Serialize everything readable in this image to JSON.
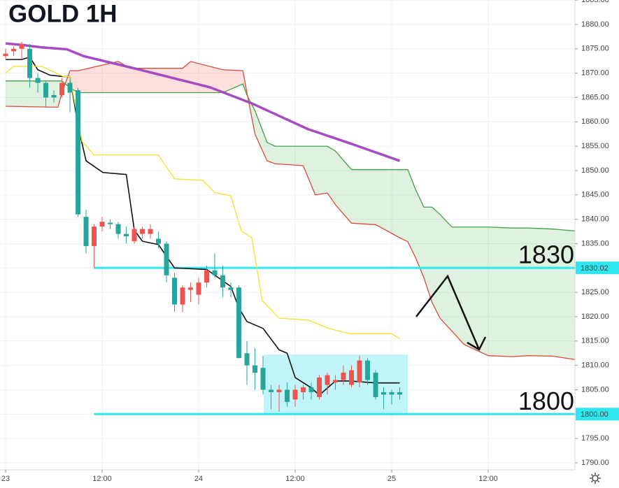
{
  "chart_data": {
    "type": "candlestick",
    "title": "GOLD 1H",
    "xlim": [
      -0.7,
      70.78
    ],
    "ylim": [
      1788.56,
      1885.02
    ],
    "grid": true,
    "xticks": [
      {
        "value": 0,
        "label": "23"
      },
      {
        "value": 12,
        "label": "12:00"
      },
      {
        "value": 24,
        "label": "24"
      },
      {
        "value": 36,
        "label": "12:00"
      },
      {
        "value": 48,
        "label": "25"
      },
      {
        "value": 60,
        "label": "12:00"
      }
    ],
    "yticks": [
      {
        "value": 1790,
        "label": "1790.00"
      },
      {
        "value": 1795,
        "label": "1795.00"
      },
      {
        "value": 1800,
        "label": "1800.00"
      },
      {
        "value": 1805,
        "label": "1805.00"
      },
      {
        "value": 1810,
        "label": "1810.00"
      },
      {
        "value": 1815,
        "label": "1815.00"
      },
      {
        "value": 1820,
        "label": "1820.00"
      },
      {
        "value": 1825,
        "label": "1825.00"
      },
      {
        "value": 1830,
        "label": "1830.00"
      },
      {
        "value": 1835,
        "label": "1835.00"
      },
      {
        "value": 1840,
        "label": "1840.00"
      },
      {
        "value": 1845,
        "label": "1845.00"
      },
      {
        "value": 1850,
        "label": "1850.00"
      },
      {
        "value": 1855,
        "label": "1855.00"
      },
      {
        "value": 1860,
        "label": "1860.00"
      },
      {
        "value": 1865,
        "label": "1865.00"
      },
      {
        "value": 1870,
        "label": "1870.00"
      },
      {
        "value": 1875,
        "label": "1875.00"
      },
      {
        "value": 1880,
        "label": "1880.00"
      },
      {
        "value": 1885,
        "label": "1885.00"
      }
    ],
    "candles": {
      "up_color": "#ef5350",
      "down_color": "#26a69a",
      "x": [
        0,
        1,
        2,
        3,
        4,
        5,
        6,
        7,
        8,
        9,
        10,
        11,
        12,
        13,
        14,
        15,
        16,
        17,
        18,
        19,
        20,
        21,
        22,
        23,
        24,
        25,
        26,
        27,
        28,
        29,
        30,
        31,
        32,
        33,
        34,
        35,
        36,
        37,
        38,
        39,
        40,
        41,
        42,
        43,
        44,
        45,
        46,
        47,
        48,
        49
      ],
      "open": [
        1873.5,
        1874.5,
        1875,
        1875,
        1869,
        1868,
        1865.5,
        1865.5,
        1868,
        1866.5,
        1840.5,
        1834.5,
        1838.5,
        1839.3,
        1839,
        1837,
        1835.5,
        1837,
        1837,
        1836,
        1835,
        1828,
        1822.5,
        1825.5,
        1824.5,
        1827,
        1829.5,
        1828.5,
        1826,
        1826,
        1812.5,
        1810,
        1809.5,
        1805,
        1804.5,
        1805,
        1803,
        1804.5,
        1805.5,
        1803.5,
        1806,
        1806.5,
        1807,
        1806,
        1806.5,
        1811,
        1808.5,
        1804.5,
        1804.5,
        1804.5
      ],
      "high": [
        1875,
        1875.5,
        1876.5,
        1876,
        1870,
        1868.5,
        1866.5,
        1869,
        1869,
        1867,
        1842,
        1839,
        1840.5,
        1840,
        1839.5,
        1838.5,
        1838.5,
        1838.5,
        1839,
        1837.5,
        1835.5,
        1829,
        1826.5,
        1827,
        1828,
        1830.5,
        1833,
        1830.5,
        1827,
        1826.5,
        1815,
        1813.5,
        1812,
        1806,
        1806,
        1806.5,
        1806,
        1806,
        1806.5,
        1808,
        1808.5,
        1808,
        1810,
        1810,
        1812,
        1811.5,
        1809,
        1805.5,
        1805,
        1805.5
      ],
      "low": [
        1873,
        1873.5,
        1873,
        1867,
        1866,
        1863,
        1864,
        1865,
        1862,
        1840.5,
        1833,
        1830,
        1837.5,
        1838,
        1836,
        1835,
        1835,
        1836,
        1836,
        1834,
        1827,
        1821,
        1821,
        1823,
        1822.5,
        1826,
        1828,
        1824,
        1824,
        1811.5,
        1806,
        1805,
        1804,
        1801,
        1800.5,
        1801.5,
        1801.5,
        1803,
        1803,
        1803,
        1804,
        1805,
        1806,
        1805.5,
        1805.5,
        1806,
        1803,
        1801,
        1802,
        1803
      ],
      "close": [
        1874,
        1875,
        1876,
        1869,
        1868,
        1865,
        1865,
        1868,
        1866,
        1841,
        1834.5,
        1838.5,
        1839.5,
        1839,
        1837,
        1836.5,
        1838,
        1838,
        1838,
        1835,
        1828.5,
        1822.5,
        1826,
        1826,
        1827,
        1829.5,
        1828.5,
        1826,
        1825.5,
        1811.5,
        1810,
        1808.5,
        1805,
        1804.5,
        1805,
        1802.5,
        1805,
        1805.5,
        1804.5,
        1807.5,
        1808,
        1807,
        1808.5,
        1809,
        1811,
        1807,
        1803.5,
        1804,
        1804,
        1804
      ]
    },
    "cloud": {
      "span_a_color": "#43a047",
      "span_b_color": "#d84b3c",
      "x": [
        0,
        6.5,
        7,
        8,
        9,
        14,
        15.5,
        22,
        23,
        27,
        29.5,
        30,
        31,
        32.5,
        33.5,
        37,
        38.5,
        40,
        41,
        43,
        46,
        49,
        50,
        51,
        52,
        53,
        54,
        55.5,
        57,
        60,
        63,
        65,
        68,
        70.78
      ],
      "span_a": [
        1868.4,
        1868.4,
        1868.4,
        1867,
        1866,
        1866,
        1866,
        1866,
        1866,
        1866,
        1867.8,
        1865.5,
        1862.3,
        1855.8,
        1855,
        1855,
        1855,
        1855,
        1854,
        1850.2,
        1850.2,
        1850.2,
        1850.2,
        1846,
        1842.5,
        1842.5,
        1841,
        1838.4,
        1838.4,
        1838.4,
        1838.2,
        1838.2,
        1838,
        1837.6
      ],
      "span_b": [
        1863.2,
        1863,
        1866,
        1870.5,
        1870.5,
        1872.4,
        1871,
        1871,
        1872.4,
        1870.7,
        1870.5,
        1866,
        1857.5,
        1852,
        1851.4,
        1851,
        1845,
        1845.4,
        1843,
        1839.2,
        1838.9,
        1836.2,
        1835.4,
        1832,
        1828,
        1823,
        1819.7,
        1817,
        1814.3,
        1812,
        1811.8,
        1812,
        1811.9,
        1811.2
      ]
    },
    "lines": [
      {
        "color": "#111111",
        "width": 1.6,
        "x": [
          0,
          2,
          3,
          4,
          5.5,
          7.2,
          8,
          9,
          10,
          12.1,
          15,
          16,
          17,
          19,
          21,
          25,
          28,
          29,
          30,
          32,
          34,
          35,
          36,
          38,
          39,
          41,
          42.8,
          46,
          49
        ],
        "values": [
          1872.8,
          1872.8,
          1873.3,
          1870.7,
          1869.6,
          1869.3,
          1869.3,
          1859.2,
          1852,
          1849.6,
          1849.2,
          1837.8,
          1835.5,
          1834.8,
          1830,
          1829.7,
          1826.2,
          1821.8,
          1819,
          1817.6,
          1813.2,
          1812.5,
          1807.5,
          1805.4,
          1803.9,
          1806.8,
          1806.8,
          1806.4,
          1806.4
        ]
      },
      {
        "color": "#f5e33b",
        "width": 1.4,
        "x": [
          0,
          1,
          4.5,
          7.2,
          8,
          9.5,
          11,
          19,
          21,
          24.5,
          26,
          28,
          29.3,
          30.6,
          31.9,
          34,
          37.6,
          40.2,
          42.8,
          48,
          49
        ],
        "values": [
          1870,
          1871.4,
          1871.4,
          1869.3,
          1869.3,
          1856,
          1853.2,
          1853.2,
          1848.3,
          1848,
          1845.5,
          1844.8,
          1837.6,
          1836.2,
          1823.3,
          1819.7,
          1819.3,
          1817.6,
          1816.5,
          1816.5,
          1815.5
        ]
      },
      {
        "color": "#a64cc2",
        "width": 3.5,
        "x": [
          0,
          2,
          4.5,
          7.6,
          9.7,
          16.7,
          25.4,
          30.6,
          37.6,
          42.8,
          49
        ],
        "values": [
          1876.1,
          1875.8,
          1875.3,
          1874.9,
          1873.5,
          1870.7,
          1867.1,
          1863.8,
          1858.5,
          1855.6,
          1852
        ]
      }
    ],
    "level_color": "#2ee6f0",
    "levels": [
      {
        "value": 1830.02,
        "label": "1830",
        "tag": "1830.02"
      },
      {
        "value": 1800,
        "label": "1800",
        "tag": "1800.00"
      }
    ]
  }
}
